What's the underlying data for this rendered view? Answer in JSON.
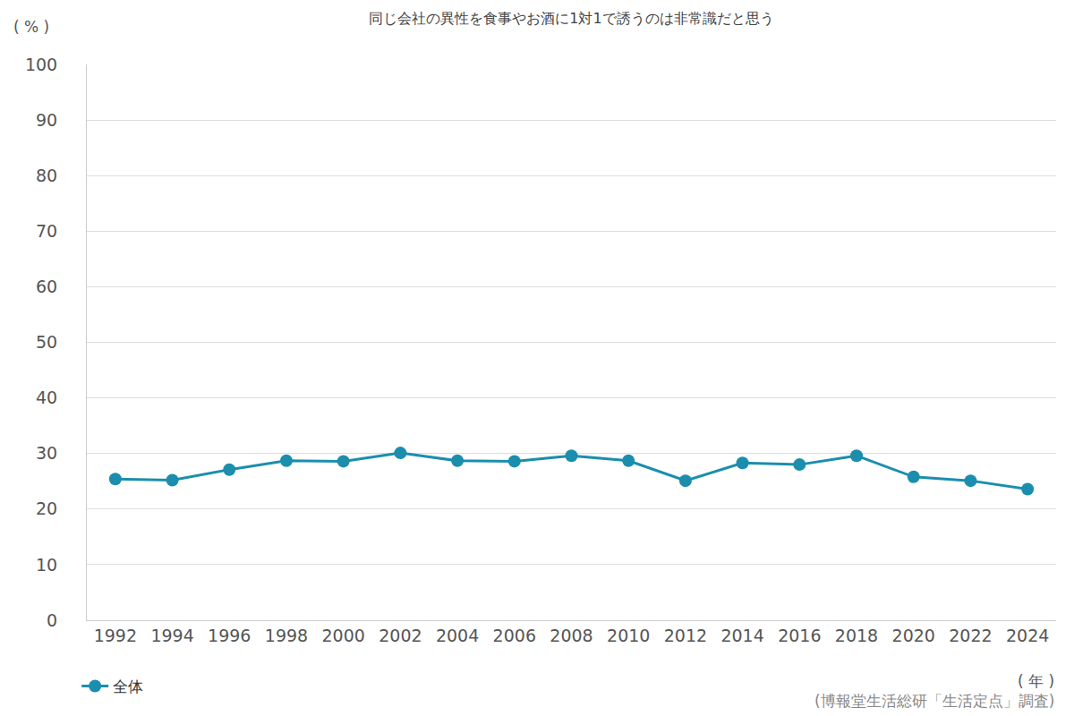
{
  "chart_data": {
    "type": "line",
    "title": "同じ会社の異性を食事やお酒に1対1で誘うのは非常識だと思う",
    "ylabel": "( % )",
    "xlabel": "( 年 )",
    "annotations": [
      "(博報堂生活総研「生活定点」調査)"
    ],
    "categories": [
      "1992",
      "1994",
      "1996",
      "1998",
      "2000",
      "2002",
      "2004",
      "2006",
      "2008",
      "2010",
      "2012",
      "2014",
      "2016",
      "2018",
      "2020",
      "2022",
      "2024"
    ],
    "series": [
      {
        "name": "全体",
        "color": "#1b8eae",
        "marker": "circle",
        "values": [
          25.4,
          25.2,
          27.1,
          28.7,
          28.6,
          30.1,
          28.7,
          28.6,
          29.6,
          28.7,
          25.1,
          28.3,
          28.0,
          29.6,
          25.8,
          25.1,
          23.6
        ]
      }
    ],
    "ylim": [
      0,
      100
    ],
    "yticks": [
      0,
      10,
      20,
      30,
      40,
      50,
      60,
      70,
      80,
      90,
      100
    ],
    "grid": true,
    "legend": "bottom left"
  }
}
